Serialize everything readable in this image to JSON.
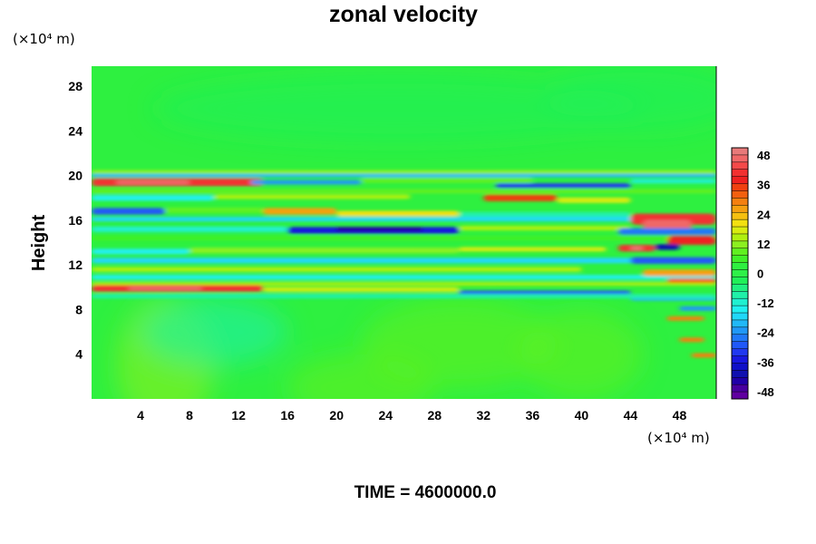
{
  "chart_data": {
    "type": "heatmap",
    "title": "zonal velocity",
    "ylabel": "Height",
    "x_unit_label": "(×10⁴ m)",
    "y_unit_label": "(×10⁴ m)",
    "footer": "TIME = 4600000.0",
    "xlim": [
      0,
      51
    ],
    "ylim": [
      0,
      29.8
    ],
    "x_ticks": [
      "4",
      "8",
      "12",
      "16",
      "20",
      "24",
      "28",
      "32",
      "36",
      "40",
      "44",
      "48"
    ],
    "y_ticks": [
      "4",
      "8",
      "12",
      "16",
      "20",
      "24",
      "28"
    ],
    "colorbar": {
      "range": [
        -51,
        51
      ],
      "ticks": [
        "48",
        "36",
        "24",
        "12",
        "0",
        "-12",
        "-24",
        "-36",
        "-48"
      ],
      "colors": [
        "#e87a7a",
        "#f06868",
        "#f44a4a",
        "#f23030",
        "#ef2020",
        "#f04010",
        "#f26010",
        "#f48010",
        "#f5a010",
        "#f5c010",
        "#f2e010",
        "#d8ec10",
        "#b0f010",
        "#8cf020",
        "#60f020",
        "#40f028",
        "#2ef040",
        "#2ef048",
        "#20f058",
        "#20f080",
        "#20f0a8",
        "#20f0d0",
        "#20f0f0",
        "#20d8f8",
        "#20b8f8",
        "#2098f8",
        "#2078f8",
        "#2058f8",
        "#2038f0",
        "#1818e0",
        "#1010c8",
        "#1010b0",
        "#2000a8",
        "#4800a0",
        "#6000a0"
      ]
    },
    "values_description_bands": [
      {
        "y_range": [
          19,
          20.2
        ],
        "peak": 45,
        "x_range": [
          0,
          12
        ]
      },
      {
        "y_range": [
          9.5,
          10.5
        ],
        "peak": 40,
        "x_range": [
          0,
          14
        ]
      },
      {
        "y_range": [
          13.5,
          15.5
        ],
        "peak": -40,
        "x_range": [
          15,
          30
        ]
      },
      {
        "y_range": [
          12.5,
          16.5
        ],
        "peak": 45,
        "x_range": [
          43,
          51
        ]
      }
    ]
  }
}
